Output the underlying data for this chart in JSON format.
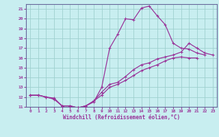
{
  "xlabel": "Windchill (Refroidissement éolien,°C)",
  "bg_color": "#c8eef0",
  "line_color": "#993399",
  "marker": "+",
  "xlim": [
    -0.5,
    23.5
  ],
  "ylim": [
    11,
    21.5
  ],
  "xticks": [
    0,
    1,
    2,
    3,
    4,
    5,
    6,
    7,
    8,
    9,
    10,
    11,
    12,
    13,
    14,
    15,
    16,
    17,
    18,
    19,
    20,
    21,
    22,
    23
  ],
  "yticks": [
    11,
    12,
    13,
    14,
    15,
    16,
    17,
    18,
    19,
    20,
    21
  ],
  "grid_color": "#9ecfce",
  "series1_x": [
    0,
    1,
    2,
    3,
    4,
    5,
    6,
    7,
    8,
    9,
    10,
    11,
    12,
    13,
    14,
    15,
    16,
    17,
    18,
    19,
    20,
    21,
    22
  ],
  "series1_y": [
    12.2,
    12.2,
    12.0,
    11.9,
    11.1,
    11.1,
    10.9,
    11.1,
    11.5,
    13.0,
    17.0,
    18.4,
    20.0,
    19.9,
    21.1,
    21.3,
    20.3,
    19.4,
    17.5,
    17.0,
    16.9,
    16.5,
    16.3
  ],
  "series2_x": [
    0,
    1,
    2,
    3,
    4,
    5,
    6,
    7,
    8,
    9,
    10,
    11,
    12,
    13,
    14,
    15,
    16,
    17,
    18,
    19,
    20,
    21,
    22,
    23
  ],
  "series2_y": [
    12.2,
    12.2,
    12.0,
    11.8,
    11.1,
    11.1,
    10.9,
    11.1,
    11.6,
    12.5,
    13.3,
    13.5,
    14.1,
    14.8,
    15.3,
    15.5,
    15.9,
    16.1,
    16.3,
    16.6,
    17.5,
    17.0,
    16.5,
    16.3
  ],
  "series3_x": [
    0,
    1,
    2,
    3,
    4,
    5,
    6,
    7,
    8,
    9,
    10,
    11,
    12,
    13,
    14,
    15,
    16,
    17,
    18,
    19,
    20,
    21
  ],
  "series3_y": [
    12.2,
    12.2,
    12.0,
    11.8,
    11.1,
    11.1,
    10.9,
    11.1,
    11.6,
    12.2,
    13.0,
    13.3,
    13.7,
    14.2,
    14.7,
    15.0,
    15.3,
    15.7,
    16.0,
    16.1,
    16.0,
    16.0
  ]
}
